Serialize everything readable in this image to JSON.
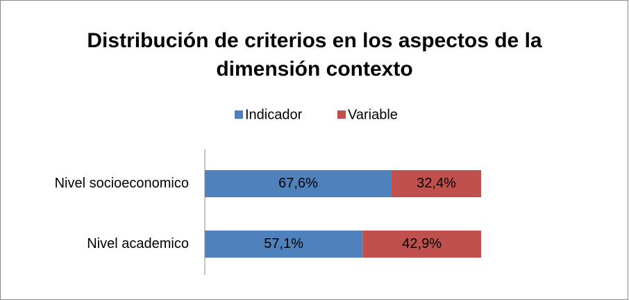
{
  "chart_data": {
    "type": "stacked_barh",
    "title": [
      "Distribución de criterios en los aspectos de la",
      "dimensión contexto"
    ],
    "categories": [
      "Nivel socioeconomico",
      "Nivel academico"
    ],
    "series": [
      {
        "name": "Indicador",
        "color": "#4f81bd",
        "values": [
          67.6,
          57.1
        ],
        "value_labels": [
          "67,6%",
          "57,1%"
        ]
      },
      {
        "name": "Variable",
        "color": "#c0504d",
        "values": [
          32.4,
          42.9
        ],
        "value_labels": [
          "32,4%",
          "42,9%"
        ]
      }
    ],
    "xlim": [
      0,
      100
    ],
    "legend": "top"
  }
}
